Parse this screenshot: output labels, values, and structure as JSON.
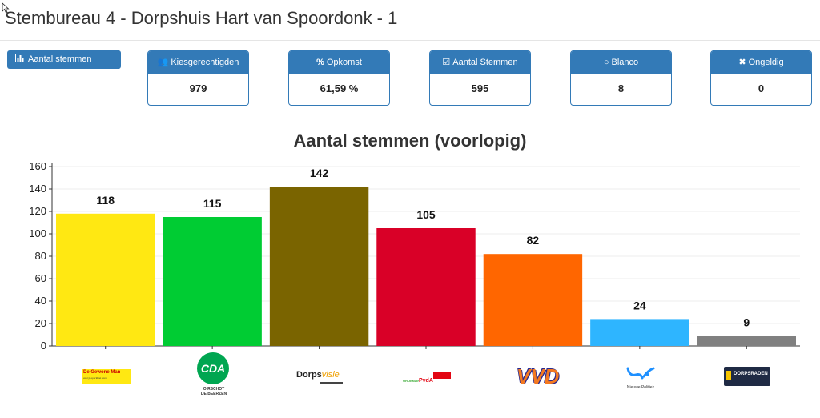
{
  "page": {
    "title": "Stembureau 4 - Dorpshuis Hart van Spoordonk - 1"
  },
  "toolbar": {
    "view_button_label": "Aantal stemmen",
    "view_button_icon": "bar-chart-icon"
  },
  "stats": [
    {
      "label": "Kiesgerechtigden",
      "value": "979",
      "icon": "users-icon"
    },
    {
      "label": "Opkomst",
      "value": "61,59 %",
      "icon": "percent-icon"
    },
    {
      "label": "Aantal Stemmen",
      "value": "595",
      "icon": "checkbox-icon"
    },
    {
      "label": "Blanco",
      "value": "8",
      "icon": "circle-icon"
    },
    {
      "label": "Ongeldig",
      "value": "0",
      "icon": "x-icon"
    }
  ],
  "chart_data": {
    "type": "bar",
    "title": "Aantal stemmen (voorlopig)",
    "categories": [
      "De Gewone Man",
      "CDA",
      "Dorpsvisie",
      "GroenLinks PvdA",
      "VVD",
      "Nieuwe Politiek",
      "Dorpsraden"
    ],
    "values": [
      118,
      115,
      142,
      105,
      82,
      24,
      9
    ],
    "colors": [
      "#FFE812",
      "#00CC33",
      "#7A6400",
      "#D90027",
      "#FF6600",
      "#2EB5FF",
      "#808080"
    ],
    "ylim": [
      0,
      160
    ],
    "yticks": [
      0,
      20,
      40,
      60,
      80,
      100,
      120,
      140,
      160
    ],
    "grid": true
  },
  "logos": {
    "de_gewone_man": {
      "text": "De Gewone Man",
      "tagline": "voor jij op e'kbiet kom"
    },
    "cda": {
      "text": "CDA",
      "sub1": "OIRSCHOT",
      "sub2": "DE BEERZEN"
    },
    "dorpsvisie": {
      "text1": "Dorps",
      "text2": "visie"
    },
    "groenlinks_pvda": {
      "text1": "GROENLINKS",
      "text2": "PvdA"
    },
    "vvd": {
      "text": "VVD"
    },
    "nieuwe_politiek": {
      "text": "Nieuwe Politiek"
    },
    "dorpsraden": {
      "text": "DORPSRADEN"
    }
  }
}
